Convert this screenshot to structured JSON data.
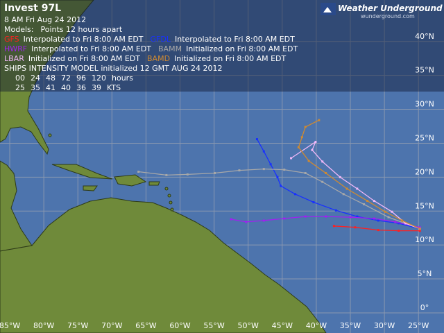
{
  "header": {
    "title": "Invest 97L",
    "date": "8 AM  Fri Aug 24 2012",
    "models": "Models:",
    "points": "Points 12 hours apart"
  },
  "logo": {
    "name": "Weather Underground",
    "url": "wunderground.com"
  },
  "legend": {
    "rows": [
      [
        {
          "model": "GFS",
          "color": "#ff2020",
          "note": "Interpolated to Fri 8:00 AM EDT",
          "lon": [
            -24.8,
            -27.9,
            -30.9,
            -34.3,
            -37.4
          ],
          "lat": [
            12.1,
            12.1,
            12.2,
            12.6,
            12.8
          ]
        },
        {
          "model": "GFDL",
          "color": "#1830ff",
          "note": "Interpolated to Fri 8:00 AM EDT",
          "lon": [
            -24.8,
            -27.9,
            -30.9,
            -34.0,
            -37.1,
            -40.4,
            -43.1,
            -45.2,
            -45.7,
            -46.7,
            -47.7,
            -48.7
          ],
          "lat": [
            12.4,
            13.2,
            13.6,
            14.2,
            15.1,
            16.3,
            17.5,
            18.7,
            20.0,
            21.9,
            23.8,
            25.6
          ]
        }
      ],
      [
        {
          "model": "HWRF",
          "color": "#a020f0",
          "note": "Interpolated to Fri 8:00 AM EDT",
          "lon": [
            -24.8,
            -28.4,
            -31.5,
            -35.0,
            -38.6,
            -41.6,
            -44.7,
            -47.7,
            -50.3,
            -52.5
          ],
          "lat": [
            12.6,
            13.4,
            13.9,
            14.1,
            14.2,
            14.2,
            13.9,
            13.6,
            13.4,
            13.8
          ]
        },
        {
          "model": "BAMM",
          "color": "#a8a8a8",
          "note": "Initialized on Fri 8:00 AM EDT",
          "lon": [
            -24.8,
            -29.4,
            -33.0,
            -36.0,
            -39.1,
            -41.6,
            -44.7,
            -47.7,
            -51.3,
            -54.9,
            -58.9,
            -62.0,
            -66.1
          ],
          "lat": [
            12.4,
            14.1,
            16.0,
            17.5,
            19.3,
            20.6,
            21.1,
            21.2,
            21.0,
            20.6,
            20.4,
            20.3,
            20.8
          ]
        }
      ],
      [
        {
          "model": "LBAR",
          "color": "#f0b8f8",
          "note": "Initialized on Fri 8:00 AM EDT",
          "lon": [
            -24.8,
            -26.9,
            -28.9,
            -31.5,
            -34.0,
            -36.5,
            -39.1,
            -40.6,
            -40.1,
            -43.7
          ],
          "lat": [
            12.4,
            13.2,
            14.9,
            16.5,
            18.3,
            20.0,
            22.3,
            24.0,
            25.2,
            22.8
          ]
        },
        {
          "model": "BAMD",
          "color": "#d08a30",
          "note": "Initialized on Fri 8:00 AM EDT",
          "lon": [
            -24.8,
            -27.4,
            -29.9,
            -32.5,
            -35.5,
            -38.6,
            -41.1,
            -42.6,
            -42.1,
            -41.6,
            -39.6
          ],
          "lat": [
            12.4,
            13.6,
            14.9,
            16.5,
            18.3,
            20.6,
            22.4,
            24.4,
            25.9,
            27.4,
            28.4
          ]
        }
      ]
    ]
  },
  "ships": {
    "title": "SHIPS INTENSITY MODEL initialized 12 GMT AUG 24 2012",
    "hours": {
      "values": [
        {
          "value": 0,
          "label": "00"
        },
        24,
        48,
        72,
        96,
        120
      ],
      "label": "hours"
    },
    "kts": {
      "values": [
        25,
        35,
        41,
        40,
        36,
        39
      ],
      "label": "KTS"
    }
  },
  "map": {
    "xlim": [
      -86.43,
      -21.25
    ],
    "ylim": [
      -2.97,
      46.11
    ],
    "xticks": [
      {
        "value": -85,
        "label": "85°W"
      },
      {
        "value": -80,
        "label": "80°W"
      },
      {
        "value": -75,
        "label": "75°W"
      },
      {
        "value": -70,
        "label": "70°W"
      },
      {
        "value": -65,
        "label": "65°W"
      },
      {
        "value": -60,
        "label": "60°W"
      },
      {
        "value": -55,
        "label": "55°W"
      },
      {
        "value": -50,
        "label": "50°W"
      },
      {
        "value": -45,
        "label": "45°W"
      },
      {
        "value": -40,
        "label": "40°W"
      },
      {
        "value": -35,
        "label": "35°W"
      },
      {
        "value": -30,
        "label": "30°W"
      },
      {
        "value": -25,
        "label": "25°W"
      }
    ],
    "yticks": [
      {
        "value": 0,
        "label": "0°"
      },
      {
        "value": 5,
        "label": "5°N"
      },
      {
        "value": 10,
        "label": "10°N"
      },
      {
        "value": 15,
        "label": "15°N"
      },
      {
        "value": 20,
        "label": "20°N"
      },
      {
        "value": 25,
        "label": "25°N"
      },
      {
        "value": 30,
        "label": "30°N"
      },
      {
        "value": 35,
        "label": "35°N"
      },
      {
        "value": 40,
        "label": "40°N"
      }
    ]
  }
}
